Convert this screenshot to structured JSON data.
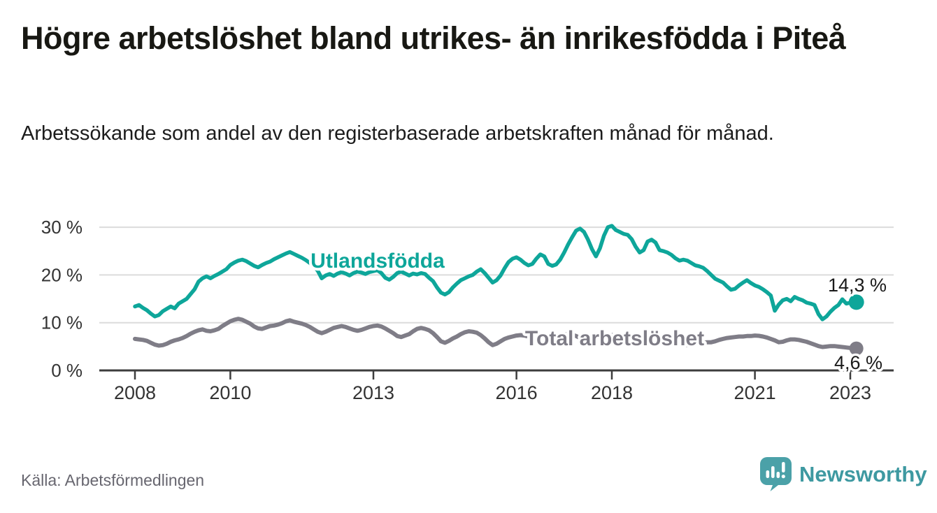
{
  "page": {
    "title": "Högre arbetslöshet bland utrikes- än inrikesfödda i Piteå",
    "subtitle": "Arbetssökande som andel av den registerbaserade arbetskraften månad för månad.",
    "source": "Källa: Arbetsförmedlingen",
    "brand": "Newsworthy"
  },
  "colors": {
    "background": "#ffffff",
    "title_text": "#181813",
    "axis": "#3d3d3d",
    "axis_label": "#333333",
    "gridline": "#dcdcdc",
    "end_label_text": "#1a1a1a",
    "source_text": "#67666f",
    "logo_teal": "#4ba1a8",
    "wordmark_teal": "#3e99a1",
    "series_utlandsfodda": "#0ea69a",
    "series_total": "#7f7d87"
  },
  "chart_data": {
    "type": "line",
    "title": "Högre arbetslöshet bland utrikes- än inrikesfödda i Piteå",
    "subtitle": "Arbetssökande som andel av den registerbaserade arbetskraften månad för månad.",
    "unit": "%",
    "x_start": "2008-01",
    "x_end": "2023-02",
    "frequency": "monthly",
    "grid": true,
    "legend_position": "inline-labels",
    "xlim_years": [
      2007.25,
      2023.9
    ],
    "ylim": [
      0,
      32
    ],
    "x_ticks": [
      2008,
      2010,
      2013,
      2016,
      2018,
      2021,
      2023
    ],
    "y_ticks": [
      {
        "value": 0,
        "label": "0 %"
      },
      {
        "value": 10,
        "label": "10 %"
      },
      {
        "value": 20,
        "label": "20 %"
      },
      {
        "value": 30,
        "label": "30 %"
      }
    ],
    "series": [
      {
        "name": "Utlandsfödda",
        "color": "#0ea69a",
        "end_value": 14.3,
        "end_label": "14,3 %",
        "values": [
          13.4,
          13.7,
          13.1,
          12.6,
          11.9,
          11.3,
          11.6,
          12.4,
          12.9,
          13.4,
          13.0,
          14.0,
          14.5,
          15.0,
          16.0,
          17.0,
          18.6,
          19.3,
          19.7,
          19.3,
          19.8,
          20.2,
          20.7,
          21.2,
          22.1,
          22.6,
          23.0,
          23.2,
          22.9,
          22.4,
          21.9,
          21.6,
          22.1,
          22.5,
          22.8,
          23.3,
          23.7,
          24.1,
          24.5,
          24.8,
          24.4,
          24.0,
          23.6,
          23.1,
          22.5,
          21.8,
          20.9,
          19.3,
          19.9,
          20.2,
          19.8,
          20.3,
          20.6,
          20.3,
          19.9,
          20.4,
          20.7,
          20.5,
          20.2,
          20.6,
          20.8,
          21.0,
          20.4,
          19.4,
          19.0,
          19.6,
          20.4,
          20.7,
          20.3,
          19.9,
          20.3,
          20.1,
          20.4,
          20.2,
          19.4,
          18.7,
          17.4,
          16.3,
          15.9,
          16.4,
          17.4,
          18.2,
          18.9,
          19.3,
          19.7,
          20.0,
          20.7,
          21.2,
          20.4,
          19.4,
          18.4,
          18.9,
          19.9,
          21.4,
          22.7,
          23.4,
          23.7,
          23.2,
          22.5,
          22.0,
          22.3,
          23.4,
          24.3,
          23.9,
          22.3,
          21.9,
          22.2,
          23.2,
          24.7,
          26.4,
          27.9,
          29.3,
          29.7,
          29.0,
          27.4,
          25.4,
          23.9,
          25.6,
          28.2,
          30.0,
          30.3,
          29.4,
          29.0,
          28.6,
          28.4,
          27.5,
          25.9,
          24.7,
          25.2,
          27.0,
          27.4,
          26.8,
          25.2,
          25.0,
          24.7,
          24.2,
          23.5,
          23.0,
          23.2,
          23.0,
          22.5,
          22.0,
          21.8,
          21.5,
          20.8,
          20.0,
          19.2,
          18.8,
          18.4,
          17.6,
          16.9,
          17.1,
          17.8,
          18.4,
          18.9,
          18.3,
          17.8,
          17.5,
          17.0,
          16.4,
          15.7,
          12.5,
          13.8,
          14.7,
          15.0,
          14.5,
          15.4,
          15.0,
          14.7,
          14.2,
          14.0,
          13.7,
          11.8,
          10.7,
          11.3,
          12.3,
          13.1,
          13.7,
          14.9,
          14.0,
          14.2,
          14.3
        ]
      },
      {
        "name": "Total arbetslöshet",
        "color": "#7f7d87",
        "end_value": 4.6,
        "end_label": "4,6 %",
        "values": [
          6.6,
          6.5,
          6.4,
          6.2,
          5.8,
          5.4,
          5.2,
          5.3,
          5.6,
          6.0,
          6.3,
          6.5,
          6.8,
          7.2,
          7.7,
          8.1,
          8.4,
          8.6,
          8.3,
          8.2,
          8.4,
          8.7,
          9.3,
          9.8,
          10.3,
          10.6,
          10.8,
          10.6,
          10.2,
          9.8,
          9.2,
          8.8,
          8.7,
          9.0,
          9.3,
          9.4,
          9.6,
          9.9,
          10.3,
          10.5,
          10.2,
          10.0,
          9.8,
          9.5,
          9.1,
          8.6,
          8.1,
          7.8,
          8.1,
          8.5,
          8.9,
          9.1,
          9.3,
          9.1,
          8.8,
          8.5,
          8.3,
          8.5,
          8.8,
          9.1,
          9.3,
          9.4,
          9.2,
          8.8,
          8.3,
          7.8,
          7.2,
          7.0,
          7.3,
          7.6,
          8.2,
          8.7,
          8.9,
          8.7,
          8.4,
          7.8,
          7.0,
          6.1,
          5.8,
          6.2,
          6.7,
          7.1,
          7.6,
          8.0,
          8.2,
          8.1,
          7.9,
          7.4,
          6.7,
          5.9,
          5.3,
          5.6,
          6.1,
          6.6,
          6.9,
          7.1,
          7.3,
          7.4,
          7.3,
          7.1,
          6.8,
          6.4,
          6.2,
          6.5,
          6.8,
          7.1,
          7.3,
          7.5,
          7.6,
          7.6,
          7.5,
          7.2,
          6.8,
          6.3,
          6.0,
          6.2,
          6.5,
          6.8,
          7.1,
          7.3,
          7.4,
          7.4,
          7.2,
          6.9,
          6.5,
          6.0,
          5.7,
          5.9,
          6.2,
          6.4,
          6.7,
          6.9,
          7.0,
          6.9,
          6.7,
          6.3,
          5.9,
          5.5,
          5.2,
          5.3,
          5.5,
          5.6,
          5.7,
          5.8,
          5.9,
          5.9,
          6.1,
          6.4,
          6.6,
          6.8,
          6.9,
          7.0,
          7.1,
          7.1,
          7.2,
          7.2,
          7.3,
          7.25,
          7.1,
          6.9,
          6.6,
          6.3,
          5.9,
          6.0,
          6.3,
          6.5,
          6.5,
          6.4,
          6.2,
          6.0,
          5.7,
          5.4,
          5.1,
          4.9,
          5.0,
          5.1,
          5.1,
          5.0,
          4.9,
          4.8,
          4.7,
          4.6
        ]
      }
    ]
  }
}
